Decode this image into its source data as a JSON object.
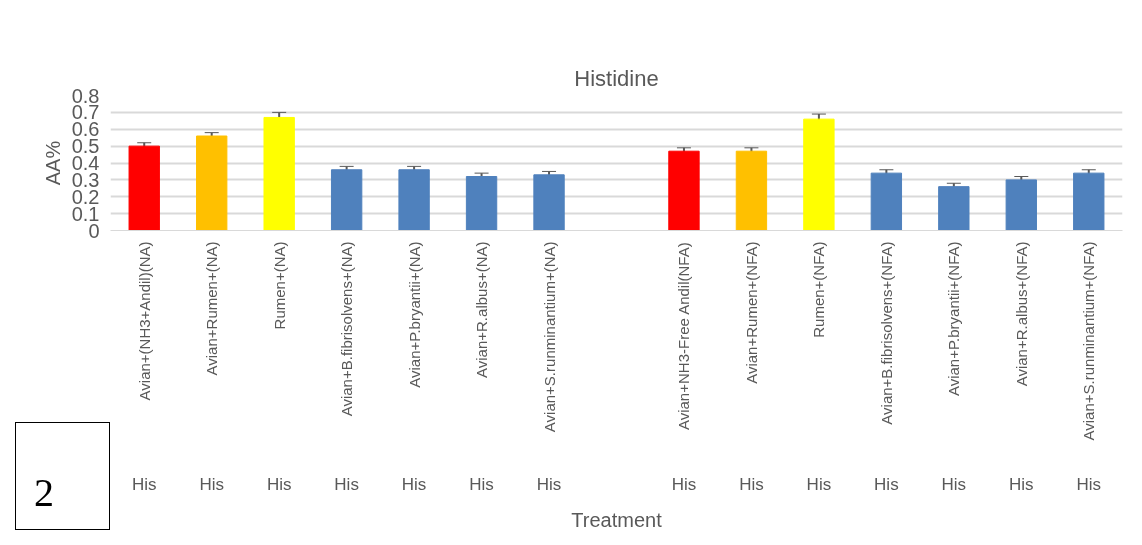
{
  "chart_data": {
    "type": "bar",
    "title": "Histidine",
    "xlabel": "Treatment",
    "ylabel": "AA%",
    "categories": [
      "Avian+(NH3+Andil)(NA)",
      "Avian+Rumen+(NA)",
      "Rumen+(NA)",
      "Avian+B.fibrisolvens+(NA)",
      "Avian+P.bryantii+(NA)",
      "Avian+R.albus+(NA)",
      "Avian+S.runminantium+(NA)",
      null,
      "Avian+NH3-Free Andil(NFA)",
      "Avian+Rumen+(NFA)",
      "Rumen+(NFA)",
      "Avian+B.fibrisolvens+(NFA)",
      "Avian+P.bryantii+(NFA)",
      "Avian+R.albus+(NFA)",
      "Avian+S.runminantium+(NFA)"
    ],
    "values": [
      0.5,
      0.56,
      0.67,
      0.36,
      0.36,
      0.32,
      0.33,
      null,
      0.47,
      0.47,
      0.66,
      0.34,
      0.26,
      0.3,
      0.34
    ],
    "errors": [
      0.02,
      0.02,
      0.03,
      0.02,
      0.02,
      0.02,
      0.02,
      null,
      0.02,
      0.02,
      0.03,
      0.02,
      0.02,
      0.02,
      0.02
    ],
    "colors": [
      "#ff0000",
      "#ffc000",
      "#ffff00",
      "#4f81bd",
      "#4f81bd",
      "#4f81bd",
      "#4f81bd",
      "#4f81bd",
      "#ff0000",
      "#ffc000",
      "#ffff00",
      "#4f81bd",
      "#4f81bd",
      "#4f81bd",
      "#4f81bd"
    ],
    "ylim": [
      0,
      0.8
    ],
    "yticks": [
      0,
      0.1,
      0.2,
      0.3,
      0.4,
      0.5,
      0.6,
      0.7,
      0.8
    ],
    "grid": "y",
    "annotations": [
      "His",
      "His",
      "His",
      "His",
      "His",
      "His",
      "His",
      "His",
      "His",
      "His",
      "His",
      "His",
      "His",
      "His",
      "2"
    ]
  }
}
